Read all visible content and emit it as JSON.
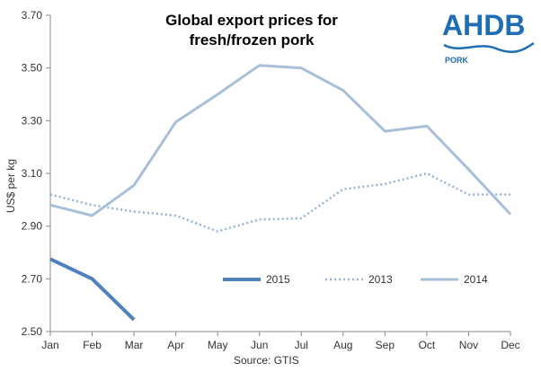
{
  "chart_data": {
    "type": "line",
    "title_lines": [
      "Global export prices for",
      "fresh/frozen pork"
    ],
    "xlabel": "",
    "ylabel": "US$ per kg",
    "source": "Source:  GTIS",
    "categories": [
      "Jan",
      "Feb",
      "Mar",
      "Apr",
      "May",
      "Jun",
      "Jul",
      "Aug",
      "Sep",
      "Oct",
      "Nov",
      "Dec"
    ],
    "ylim": [
      2.5,
      3.7
    ],
    "yticks": [
      "2.50",
      "2.70",
      "2.90",
      "3.10",
      "3.30",
      "3.50",
      "3.70"
    ],
    "grid": false,
    "legend_position": "bottom-right",
    "series": [
      {
        "name": "2015",
        "style": "solid-thick",
        "color": "#4f81bd",
        "values": [
          2.775,
          2.7,
          2.545,
          null,
          null,
          null,
          null,
          null,
          null,
          null,
          null,
          null
        ]
      },
      {
        "name": "2013",
        "style": "dotted",
        "color": "#95b3d7",
        "values": [
          3.02,
          2.98,
          2.955,
          2.94,
          2.88,
          2.925,
          2.93,
          3.04,
          3.06,
          3.1,
          3.02,
          3.02
        ]
      },
      {
        "name": "2014",
        "style": "solid",
        "color": "#a7bfd9",
        "values": [
          2.98,
          2.94,
          3.055,
          3.295,
          3.4,
          3.51,
          3.5,
          3.415,
          3.26,
          3.28,
          3.115,
          2.945
        ]
      }
    ]
  },
  "logo": {
    "text": "AHDB",
    "subtext": "PORK",
    "color": "#1f6db3"
  }
}
